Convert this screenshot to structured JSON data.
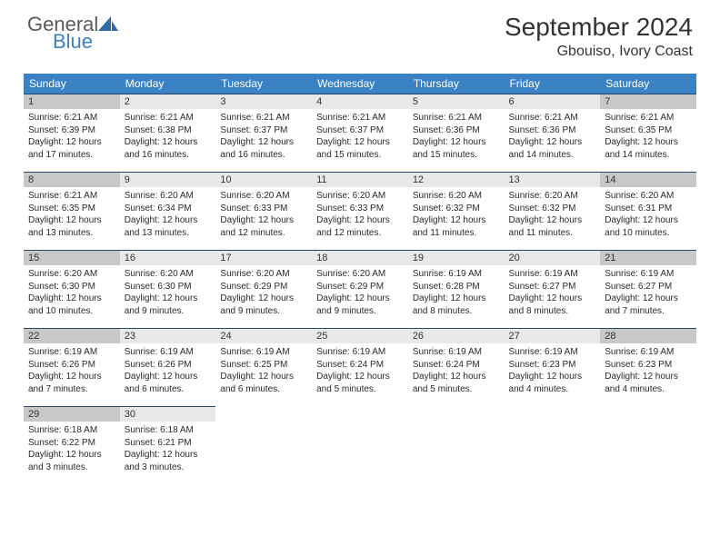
{
  "logo": {
    "word1": "General",
    "word2": "Blue"
  },
  "title": "September 2024",
  "location": "Gbouiso, Ivory Coast",
  "colors": {
    "header_bg": "#3b82c4",
    "header_fg": "#ffffff",
    "daynum_bg": "#e8e8e8",
    "daynum_border": "#254a6e",
    "highlight_bg": "#c8c8c8"
  },
  "weekdays": [
    "Sunday",
    "Monday",
    "Tuesday",
    "Wednesday",
    "Thursday",
    "Friday",
    "Saturday"
  ],
  "weeks": [
    [
      {
        "n": "1",
        "hl": true,
        "sr": "6:21 AM",
        "ss": "6:39 PM",
        "dl": "12 hours and 17 minutes."
      },
      {
        "n": "2",
        "sr": "6:21 AM",
        "ss": "6:38 PM",
        "dl": "12 hours and 16 minutes."
      },
      {
        "n": "3",
        "sr": "6:21 AM",
        "ss": "6:37 PM",
        "dl": "12 hours and 16 minutes."
      },
      {
        "n": "4",
        "sr": "6:21 AM",
        "ss": "6:37 PM",
        "dl": "12 hours and 15 minutes."
      },
      {
        "n": "5",
        "sr": "6:21 AM",
        "ss": "6:36 PM",
        "dl": "12 hours and 15 minutes."
      },
      {
        "n": "6",
        "sr": "6:21 AM",
        "ss": "6:36 PM",
        "dl": "12 hours and 14 minutes."
      },
      {
        "n": "7",
        "hl": true,
        "sr": "6:21 AM",
        "ss": "6:35 PM",
        "dl": "12 hours and 14 minutes."
      }
    ],
    [
      {
        "n": "8",
        "hl": true,
        "sr": "6:21 AM",
        "ss": "6:35 PM",
        "dl": "12 hours and 13 minutes."
      },
      {
        "n": "9",
        "sr": "6:20 AM",
        "ss": "6:34 PM",
        "dl": "12 hours and 13 minutes."
      },
      {
        "n": "10",
        "sr": "6:20 AM",
        "ss": "6:33 PM",
        "dl": "12 hours and 12 minutes."
      },
      {
        "n": "11",
        "sr": "6:20 AM",
        "ss": "6:33 PM",
        "dl": "12 hours and 12 minutes."
      },
      {
        "n": "12",
        "sr": "6:20 AM",
        "ss": "6:32 PM",
        "dl": "12 hours and 11 minutes."
      },
      {
        "n": "13",
        "sr": "6:20 AM",
        "ss": "6:32 PM",
        "dl": "12 hours and 11 minutes."
      },
      {
        "n": "14",
        "hl": true,
        "sr": "6:20 AM",
        "ss": "6:31 PM",
        "dl": "12 hours and 10 minutes."
      }
    ],
    [
      {
        "n": "15",
        "hl": true,
        "sr": "6:20 AM",
        "ss": "6:30 PM",
        "dl": "12 hours and 10 minutes."
      },
      {
        "n": "16",
        "sr": "6:20 AM",
        "ss": "6:30 PM",
        "dl": "12 hours and 9 minutes."
      },
      {
        "n": "17",
        "sr": "6:20 AM",
        "ss": "6:29 PM",
        "dl": "12 hours and 9 minutes."
      },
      {
        "n": "18",
        "sr": "6:20 AM",
        "ss": "6:29 PM",
        "dl": "12 hours and 9 minutes."
      },
      {
        "n": "19",
        "sr": "6:19 AM",
        "ss": "6:28 PM",
        "dl": "12 hours and 8 minutes."
      },
      {
        "n": "20",
        "sr": "6:19 AM",
        "ss": "6:27 PM",
        "dl": "12 hours and 8 minutes."
      },
      {
        "n": "21",
        "hl": true,
        "sr": "6:19 AM",
        "ss": "6:27 PM",
        "dl": "12 hours and 7 minutes."
      }
    ],
    [
      {
        "n": "22",
        "hl": true,
        "sr": "6:19 AM",
        "ss": "6:26 PM",
        "dl": "12 hours and 7 minutes."
      },
      {
        "n": "23",
        "sr": "6:19 AM",
        "ss": "6:26 PM",
        "dl": "12 hours and 6 minutes."
      },
      {
        "n": "24",
        "sr": "6:19 AM",
        "ss": "6:25 PM",
        "dl": "12 hours and 6 minutes."
      },
      {
        "n": "25",
        "sr": "6:19 AM",
        "ss": "6:24 PM",
        "dl": "12 hours and 5 minutes."
      },
      {
        "n": "26",
        "sr": "6:19 AM",
        "ss": "6:24 PM",
        "dl": "12 hours and 5 minutes."
      },
      {
        "n": "27",
        "sr": "6:19 AM",
        "ss": "6:23 PM",
        "dl": "12 hours and 4 minutes."
      },
      {
        "n": "28",
        "hl": true,
        "sr": "6:19 AM",
        "ss": "6:23 PM",
        "dl": "12 hours and 4 minutes."
      }
    ],
    [
      {
        "n": "29",
        "hl": true,
        "sr": "6:18 AM",
        "ss": "6:22 PM",
        "dl": "12 hours and 3 minutes."
      },
      {
        "n": "30",
        "sr": "6:18 AM",
        "ss": "6:21 PM",
        "dl": "12 hours and 3 minutes."
      },
      null,
      null,
      null,
      null,
      null
    ]
  ]
}
